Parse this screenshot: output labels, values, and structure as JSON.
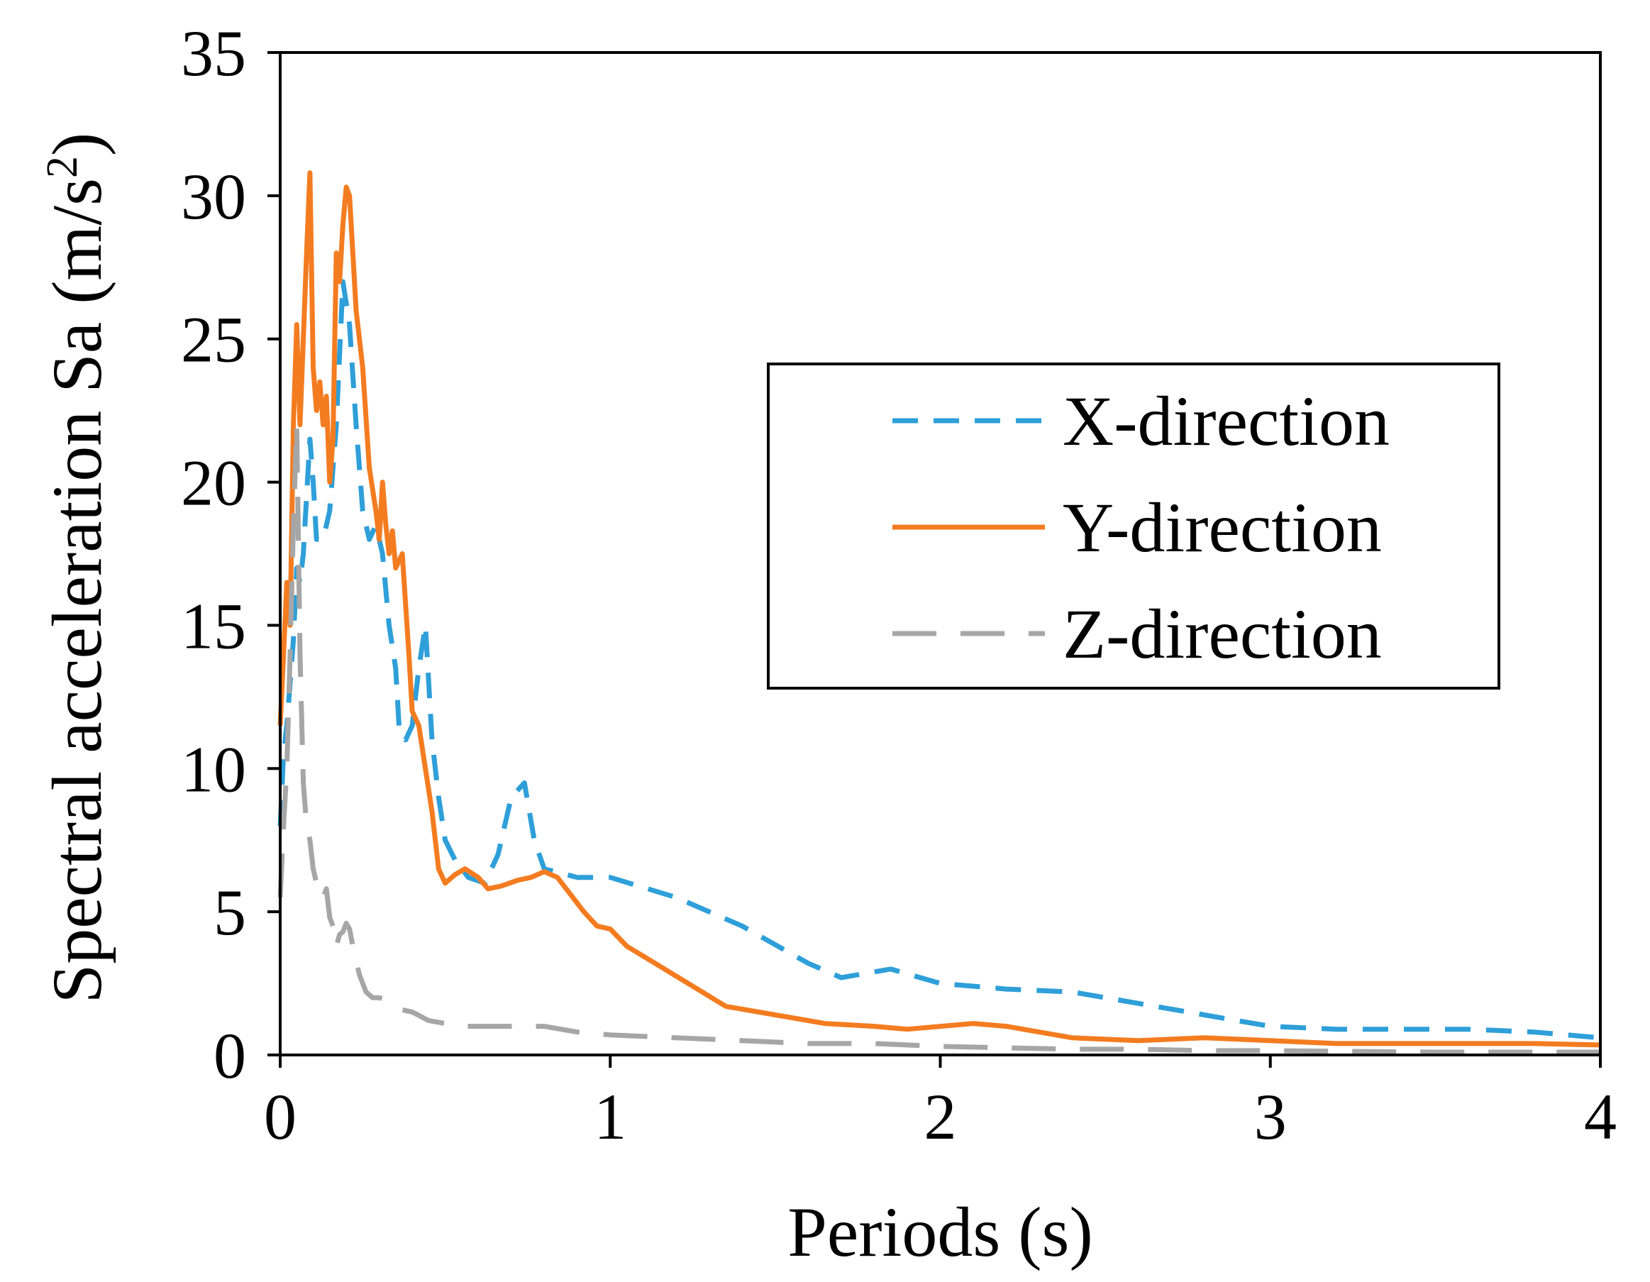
{
  "chart_data": {
    "type": "line",
    "title": "",
    "xlabel": "Periods (s)",
    "ylabel_main": "Spectral acceleration Sa (m/s",
    "ylabel_sup": "2",
    "ylabel_close": ")",
    "xlim": [
      0,
      4
    ],
    "ylim": [
      0,
      35
    ],
    "xticks": [
      0,
      1,
      2,
      3,
      4
    ],
    "yticks": [
      0,
      5,
      10,
      15,
      20,
      25,
      30,
      35
    ],
    "xtick_labels": [
      "0",
      "1",
      "2",
      "3",
      "4"
    ],
    "ytick_labels": [
      "0",
      "5",
      "10",
      "15",
      "20",
      "25",
      "30",
      "35"
    ],
    "grid": false,
    "legend_position": "upper-right",
    "series": [
      {
        "name": "X-direction",
        "color": "#2E9FD9",
        "style": "dashed",
        "points": [
          [
            0.0,
            8.0
          ],
          [
            0.01,
            10.5
          ],
          [
            0.02,
            11.5
          ],
          [
            0.03,
            13.0
          ],
          [
            0.04,
            14.5
          ],
          [
            0.05,
            17.0
          ],
          [
            0.06,
            16.5
          ],
          [
            0.07,
            17.5
          ],
          [
            0.08,
            19.5
          ],
          [
            0.09,
            21.5
          ],
          [
            0.1,
            20.0
          ],
          [
            0.11,
            18.0
          ],
          [
            0.13,
            18.0
          ],
          [
            0.15,
            19.0
          ],
          [
            0.17,
            22.0
          ],
          [
            0.19,
            27.0
          ],
          [
            0.21,
            25.5
          ],
          [
            0.23,
            22.0
          ],
          [
            0.25,
            19.0
          ],
          [
            0.27,
            18.0
          ],
          [
            0.29,
            18.5
          ],
          [
            0.31,
            17.5
          ],
          [
            0.33,
            15.0
          ],
          [
            0.35,
            13.5
          ],
          [
            0.36,
            11.5
          ],
          [
            0.38,
            11.0
          ],
          [
            0.4,
            11.5
          ],
          [
            0.42,
            13.5
          ],
          [
            0.44,
            15.0
          ],
          [
            0.46,
            11.0
          ],
          [
            0.48,
            9.0
          ],
          [
            0.5,
            7.5
          ],
          [
            0.53,
            6.8
          ],
          [
            0.57,
            6.2
          ],
          [
            0.62,
            6.0
          ],
          [
            0.66,
            7.0
          ],
          [
            0.7,
            9.0
          ],
          [
            0.74,
            9.5
          ],
          [
            0.77,
            7.5
          ],
          [
            0.8,
            6.5
          ],
          [
            0.9,
            6.2
          ],
          [
            1.0,
            6.2
          ],
          [
            1.2,
            5.5
          ],
          [
            1.4,
            4.5
          ],
          [
            1.6,
            3.2
          ],
          [
            1.7,
            2.7
          ],
          [
            1.85,
            3.0
          ],
          [
            2.0,
            2.5
          ],
          [
            2.2,
            2.3
          ],
          [
            2.4,
            2.2
          ],
          [
            2.6,
            1.8
          ],
          [
            2.8,
            1.4
          ],
          [
            3.0,
            1.0
          ],
          [
            3.2,
            0.9
          ],
          [
            3.4,
            0.9
          ],
          [
            3.6,
            0.9
          ],
          [
            3.8,
            0.8
          ],
          [
            4.0,
            0.6
          ]
        ]
      },
      {
        "name": "Y-direction",
        "color": "#F47C20",
        "style": "solid",
        "points": [
          [
            0.0,
            11.5
          ],
          [
            0.01,
            14.0
          ],
          [
            0.02,
            16.5
          ],
          [
            0.03,
            15.0
          ],
          [
            0.04,
            22.0
          ],
          [
            0.05,
            25.5
          ],
          [
            0.06,
            22.0
          ],
          [
            0.07,
            25.0
          ],
          [
            0.08,
            28.0
          ],
          [
            0.09,
            30.8
          ],
          [
            0.1,
            24.0
          ],
          [
            0.11,
            22.5
          ],
          [
            0.12,
            23.5
          ],
          [
            0.13,
            22.0
          ],
          [
            0.14,
            23.0
          ],
          [
            0.15,
            20.0
          ],
          [
            0.16,
            21.5
          ],
          [
            0.17,
            28.0
          ],
          [
            0.18,
            27.0
          ],
          [
            0.19,
            29.0
          ],
          [
            0.2,
            30.3
          ],
          [
            0.21,
            30.0
          ],
          [
            0.22,
            28.0
          ],
          [
            0.23,
            26.0
          ],
          [
            0.25,
            24.0
          ],
          [
            0.27,
            20.5
          ],
          [
            0.29,
            19.0
          ],
          [
            0.3,
            18.0
          ],
          [
            0.31,
            20.0
          ],
          [
            0.32,
            18.5
          ],
          [
            0.33,
            17.5
          ],
          [
            0.34,
            18.3
          ],
          [
            0.35,
            17.0
          ],
          [
            0.37,
            17.5
          ],
          [
            0.39,
            14.0
          ],
          [
            0.4,
            12.0
          ],
          [
            0.42,
            11.5
          ],
          [
            0.44,
            10.0
          ],
          [
            0.46,
            8.5
          ],
          [
            0.48,
            6.5
          ],
          [
            0.5,
            6.0
          ],
          [
            0.53,
            6.3
          ],
          [
            0.56,
            6.5
          ],
          [
            0.6,
            6.2
          ],
          [
            0.63,
            5.8
          ],
          [
            0.67,
            5.9
          ],
          [
            0.72,
            6.1
          ],
          [
            0.76,
            6.2
          ],
          [
            0.8,
            6.4
          ],
          [
            0.84,
            6.2
          ],
          [
            0.88,
            5.6
          ],
          [
            0.92,
            5.0
          ],
          [
            0.96,
            4.5
          ],
          [
            1.0,
            4.4
          ],
          [
            1.05,
            3.8
          ],
          [
            1.15,
            3.1
          ],
          [
            1.25,
            2.4
          ],
          [
            1.35,
            1.7
          ],
          [
            1.5,
            1.4
          ],
          [
            1.65,
            1.1
          ],
          [
            1.8,
            1.0
          ],
          [
            1.9,
            0.9
          ],
          [
            2.1,
            1.1
          ],
          [
            2.2,
            1.0
          ],
          [
            2.4,
            0.6
          ],
          [
            2.6,
            0.5
          ],
          [
            2.8,
            0.6
          ],
          [
            3.0,
            0.5
          ],
          [
            3.2,
            0.4
          ],
          [
            3.5,
            0.4
          ],
          [
            3.8,
            0.4
          ],
          [
            4.0,
            0.35
          ]
        ]
      },
      {
        "name": "Z-direction",
        "color": "#A6A6A6",
        "style": "long-dashed",
        "points": [
          [
            0.0,
            5.5
          ],
          [
            0.01,
            8.0
          ],
          [
            0.02,
            10.0
          ],
          [
            0.03,
            14.0
          ],
          [
            0.04,
            18.5
          ],
          [
            0.05,
            22.0
          ],
          [
            0.06,
            14.0
          ],
          [
            0.07,
            9.5
          ],
          [
            0.08,
            8.0
          ],
          [
            0.09,
            7.5
          ],
          [
            0.1,
            6.5
          ],
          [
            0.11,
            6.0
          ],
          [
            0.12,
            6.0
          ],
          [
            0.13,
            5.5
          ],
          [
            0.14,
            5.8
          ],
          [
            0.15,
            4.8
          ],
          [
            0.16,
            4.5
          ],
          [
            0.17,
            3.8
          ],
          [
            0.18,
            4.2
          ],
          [
            0.19,
            4.3
          ],
          [
            0.2,
            4.6
          ],
          [
            0.21,
            4.4
          ],
          [
            0.22,
            3.8
          ],
          [
            0.24,
            2.8
          ],
          [
            0.26,
            2.2
          ],
          [
            0.28,
            2.0
          ],
          [
            0.3,
            2.0
          ],
          [
            0.33,
            1.9
          ],
          [
            0.36,
            1.6
          ],
          [
            0.4,
            1.5
          ],
          [
            0.45,
            1.2
          ],
          [
            0.5,
            1.1
          ],
          [
            0.55,
            1.0
          ],
          [
            0.6,
            1.0
          ],
          [
            0.7,
            1.0
          ],
          [
            0.8,
            1.0
          ],
          [
            0.9,
            0.8
          ],
          [
            1.0,
            0.7
          ],
          [
            1.2,
            0.6
          ],
          [
            1.4,
            0.5
          ],
          [
            1.6,
            0.4
          ],
          [
            1.8,
            0.4
          ],
          [
            2.0,
            0.3
          ],
          [
            2.2,
            0.25
          ],
          [
            2.4,
            0.2
          ],
          [
            2.6,
            0.2
          ],
          [
            2.8,
            0.15
          ],
          [
            3.0,
            0.15
          ],
          [
            3.5,
            0.1
          ],
          [
            4.0,
            0.1
          ]
        ]
      }
    ]
  }
}
